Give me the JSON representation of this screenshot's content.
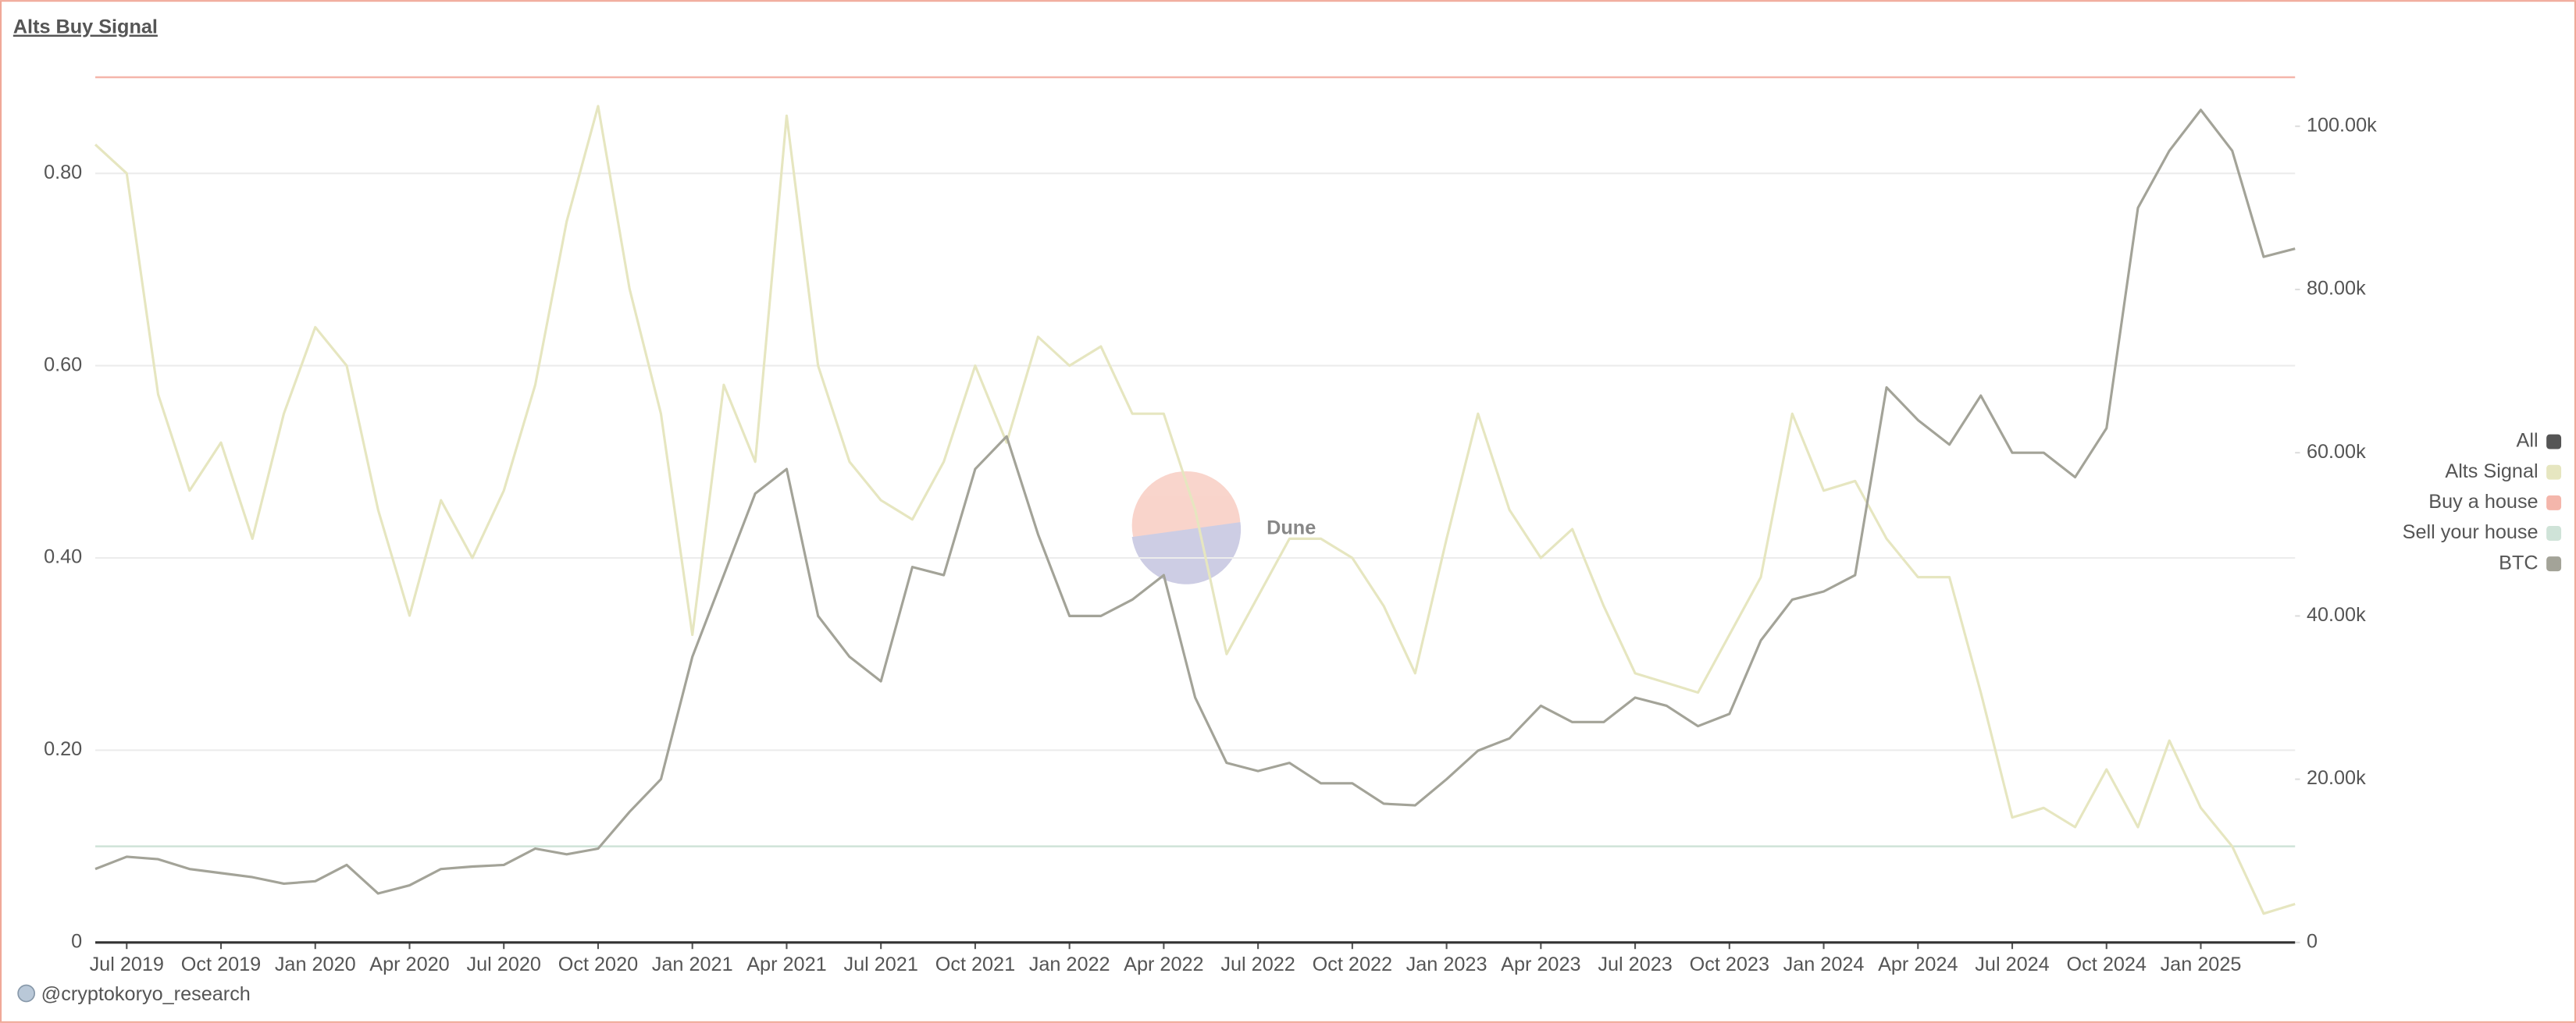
{
  "chart_data": {
    "type": "line",
    "title": "Alts Buy Signal",
    "footer": "@cryptokoryo_research",
    "watermark": "Dune",
    "legend_all": "All",
    "legend": "right",
    "grid": true,
    "x": [
      "2019-06",
      "2019-07",
      "2019-08",
      "2019-09",
      "2019-10",
      "2019-11",
      "2019-12",
      "2020-01",
      "2020-02",
      "2020-03",
      "2020-04",
      "2020-05",
      "2020-06",
      "2020-07",
      "2020-08",
      "2020-09",
      "2020-10",
      "2020-11",
      "2020-12",
      "2021-01",
      "2021-02",
      "2021-03",
      "2021-04",
      "2021-05",
      "2021-06",
      "2021-07",
      "2021-08",
      "2021-09",
      "2021-10",
      "2021-11",
      "2021-12",
      "2022-01",
      "2022-02",
      "2022-03",
      "2022-04",
      "2022-05",
      "2022-06",
      "2022-07",
      "2022-08",
      "2022-09",
      "2022-10",
      "2022-11",
      "2022-12",
      "2023-01",
      "2023-02",
      "2023-03",
      "2023-04",
      "2023-05",
      "2023-06",
      "2023-07",
      "2023-08",
      "2023-09",
      "2023-10",
      "2023-11",
      "2023-12",
      "2024-01",
      "2024-02",
      "2024-03",
      "2024-04",
      "2024-05",
      "2024-06",
      "2024-07",
      "2024-08",
      "2024-09",
      "2024-10",
      "2024-11",
      "2024-12",
      "2025-01",
      "2025-02",
      "2025-03",
      "2025-04"
    ],
    "xlim": [
      "2019-06",
      "2025-04"
    ],
    "xticks": [
      {
        "value": "2019-07",
        "label": "Jul 2019"
      },
      {
        "value": "2019-10",
        "label": "Oct 2019"
      },
      {
        "value": "2020-01",
        "label": "Jan 2020"
      },
      {
        "value": "2020-04",
        "label": "Apr 2020"
      },
      {
        "value": "2020-07",
        "label": "Jul 2020"
      },
      {
        "value": "2020-10",
        "label": "Oct 2020"
      },
      {
        "value": "2021-01",
        "label": "Jan 2021"
      },
      {
        "value": "2021-04",
        "label": "Apr 2021"
      },
      {
        "value": "2021-07",
        "label": "Jul 2021"
      },
      {
        "value": "2021-10",
        "label": "Oct 2021"
      },
      {
        "value": "2022-01",
        "label": "Jan 2022"
      },
      {
        "value": "2022-04",
        "label": "Apr 2022"
      },
      {
        "value": "2022-07",
        "label": "Jul 2022"
      },
      {
        "value": "2022-10",
        "label": "Oct 2022"
      },
      {
        "value": "2023-01",
        "label": "Jan 2023"
      },
      {
        "value": "2023-04",
        "label": "Apr 2023"
      },
      {
        "value": "2023-07",
        "label": "Jul 2023"
      },
      {
        "value": "2023-10",
        "label": "Oct 2023"
      },
      {
        "value": "2024-01",
        "label": "Jan 2024"
      },
      {
        "value": "2024-04",
        "label": "Apr 2024"
      },
      {
        "value": "2024-07",
        "label": "Jul 2024"
      },
      {
        "value": "2024-10",
        "label": "Oct 2024"
      },
      {
        "value": "2025-01",
        "label": "Jan 2025"
      }
    ],
    "ylim": [
      0,
      0.9
    ],
    "yticks": [
      0,
      {
        "value": 0.2,
        "label": "0.20"
      },
      {
        "value": 0.4,
        "label": "0.40"
      },
      {
        "value": 0.6,
        "label": "0.60"
      },
      {
        "value": 0.8,
        "label": "0.80"
      }
    ],
    "y2lim": [
      0,
      106000
    ],
    "y2ticks": [
      0,
      {
        "value": 20000,
        "label": "20.00k"
      },
      {
        "value": 40000,
        "label": "40.00k"
      },
      {
        "value": 60000,
        "label": "60.00k"
      },
      {
        "value": 80000,
        "label": "80.00k"
      },
      {
        "value": 100000,
        "label": "100.00k"
      }
    ],
    "series": [
      {
        "name": "Alts Signal",
        "color": "#e6e6c0",
        "values": [
          0.83,
          0.8,
          0.57,
          0.47,
          0.52,
          0.42,
          0.55,
          0.64,
          0.6,
          0.45,
          0.34,
          0.46,
          0.4,
          0.47,
          0.58,
          0.75,
          0.87,
          0.68,
          0.55,
          0.32,
          0.58,
          0.5,
          0.86,
          0.6,
          0.5,
          0.46,
          0.44,
          0.5,
          0.6,
          0.52,
          0.63,
          0.6,
          0.62,
          0.55,
          0.55,
          0.45,
          0.3,
          0.36,
          0.42,
          0.42,
          0.4,
          0.35,
          0.28,
          0.42,
          0.55,
          0.45,
          0.4,
          0.43,
          0.35,
          0.28,
          0.27,
          0.26,
          0.32,
          0.38,
          0.55,
          0.47,
          0.48,
          0.42,
          0.38,
          0.38,
          0.26,
          0.13,
          0.14,
          0.12,
          0.18,
          0.12,
          0.21,
          0.14,
          0.1,
          0.03,
          0.04
        ]
      },
      {
        "name": "BTC",
        "color": "#a3a398",
        "axis": "y2",
        "values": [
          9000,
          10500,
          10200,
          9000,
          8500,
          8000,
          7200,
          7500,
          9500,
          6000,
          7000,
          9000,
          9300,
          9500,
          11500,
          10800,
          11500,
          16000,
          20000,
          35000,
          45000,
          55000,
          58000,
          40000,
          35000,
          32000,
          46000,
          45000,
          58000,
          62000,
          50000,
          40000,
          40000,
          42000,
          45000,
          30000,
          22000,
          21000,
          22000,
          19500,
          19500,
          17000,
          16800,
          20000,
          23500,
          25000,
          29000,
          27000,
          27000,
          30000,
          29000,
          26500,
          28000,
          37000,
          42000,
          43000,
          45000,
          68000,
          64000,
          61000,
          67000,
          60000,
          60000,
          57000,
          63000,
          90000,
          97000,
          102000,
          97000,
          84000,
          85000
        ]
      }
    ],
    "reference_lines": [
      {
        "name": "Buy a house",
        "color": "#f4b6ab",
        "value": 0.9
      },
      {
        "name": "Sell your house",
        "color": "#cfe3d8",
        "value": 0.1
      }
    ]
  }
}
